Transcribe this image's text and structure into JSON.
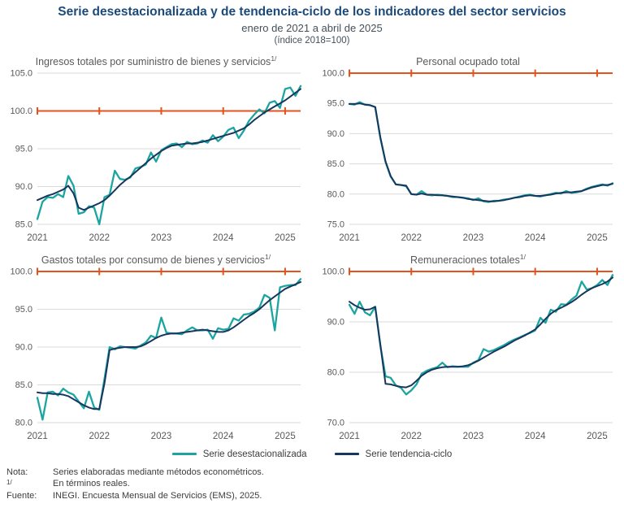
{
  "header": {
    "title": "Serie desestacionalizada y de tendencia-ciclo de los indicadores del sector servicios",
    "subtitle": "enero de 2021 a abril de 2025",
    "index_label": "(índice 2018=100)"
  },
  "legend": {
    "items": [
      {
        "label": "Serie desestacionalizada",
        "color": "#1ca5a0"
      },
      {
        "label": "Serie tendencia-ciclo",
        "color": "#17375e"
      }
    ]
  },
  "footnotes": [
    {
      "label": "Nota:",
      "text": "Series elaboradas mediante métodos econométricos."
    },
    {
      "label": "1/",
      "text": "En términos reales."
    },
    {
      "label": "Fuente:",
      "text": "INEGI. Encuesta Mensual de Servicios (EMS), 2025."
    }
  ],
  "colors": {
    "title": "#1b4a7a",
    "subtitle": "#44505a",
    "chart_title": "#595959",
    "axis_text": "#595959",
    "gridline": "#dadada",
    "ref_line": "#e5521c",
    "serie_desestacionalizada": "#1ca5a0",
    "serie_tendencia": "#17375e"
  },
  "chart_data": [
    {
      "type": "line",
      "id": "ingresos",
      "title": "Ingresos totales por suministro de bienes y servicios",
      "title_sup": "1/",
      "x_start": "enero 2021",
      "x_end": "abril 2025",
      "x_tick_labels": [
        "2021",
        "2022",
        "2023",
        "2024",
        "2025"
      ],
      "ylim": [
        85,
        105
      ],
      "yticks": [
        85,
        90,
        95,
        100,
        105
      ],
      "ref_line": 100,
      "series": [
        {
          "name": "Serie desestacionalizada",
          "values": [
            85.7,
            88.0,
            88.6,
            88.5,
            89.0,
            88.6,
            91.4,
            90.1,
            86.4,
            86.6,
            87.4,
            87.2,
            85.0,
            88.6,
            88.9,
            92.1,
            91.0,
            90.9,
            91.2,
            92.4,
            92.6,
            92.9,
            94.5,
            93.3,
            94.8,
            95.2,
            95.6,
            95.7,
            95.2,
            95.9,
            95.6,
            95.7,
            96.1,
            95.8,
            96.8,
            96.0,
            96.6,
            97.5,
            97.8,
            96.4,
            97.4,
            98.7,
            99.5,
            100.2,
            99.7,
            101.1,
            101.3,
            100.4,
            102.9,
            103.1,
            102.0,
            103.3
          ]
        },
        {
          "name": "Serie tendencia-ciclo",
          "values": [
            88.2,
            88.5,
            88.8,
            89.0,
            89.3,
            89.6,
            90.1,
            89.1,
            87.2,
            86.9,
            87.2,
            87.5,
            87.8,
            88.2,
            88.8,
            89.5,
            90.2,
            90.8,
            91.3,
            91.9,
            92.5,
            93.1,
            93.7,
            94.2,
            94.7,
            95.1,
            95.4,
            95.5,
            95.6,
            95.7,
            95.7,
            95.8,
            95.9,
            96.1,
            96.3,
            96.5,
            96.7,
            96.9,
            97.1,
            97.4,
            97.7,
            98.2,
            98.8,
            99.3,
            99.8,
            100.2,
            100.6,
            101.0,
            101.4,
            101.9,
            102.4,
            102.9
          ]
        }
      ]
    },
    {
      "type": "line",
      "id": "personal",
      "title": "Personal ocupado total",
      "title_sup": "",
      "x_start": "enero 2021",
      "x_end": "abril 2025",
      "x_tick_labels": [
        "2021",
        "2022",
        "2023",
        "2024",
        "2025"
      ],
      "ylim": [
        75,
        100
      ],
      "yticks": [
        75,
        80,
        85,
        90,
        95,
        100
      ],
      "ref_line": 100,
      "series": [
        {
          "name": "Serie desestacionalizada",
          "values": [
            94.9,
            94.8,
            95.2,
            94.8,
            94.7,
            94.4,
            89.3,
            85.3,
            82.9,
            81.6,
            81.5,
            81.3,
            80.0,
            79.9,
            80.5,
            79.9,
            79.8,
            79.9,
            79.8,
            79.7,
            79.5,
            79.5,
            79.4,
            79.3,
            79.0,
            79.3,
            78.8,
            78.7,
            78.9,
            78.9,
            79.1,
            79.2,
            79.4,
            79.6,
            79.8,
            79.9,
            79.7,
            79.6,
            79.8,
            80.0,
            80.2,
            80.1,
            80.5,
            80.2,
            80.3,
            80.5,
            80.9,
            81.2,
            81.4,
            81.6,
            81.4,
            81.8
          ]
        },
        {
          "name": "Serie tendencia-ciclo",
          "values": [
            94.9,
            94.9,
            95.0,
            94.8,
            94.7,
            94.4,
            89.4,
            85.4,
            83.0,
            81.6,
            81.5,
            81.4,
            80.0,
            79.9,
            80.1,
            79.9,
            79.9,
            79.8,
            79.8,
            79.7,
            79.6,
            79.5,
            79.4,
            79.2,
            79.1,
            79.0,
            78.9,
            78.8,
            78.8,
            78.9,
            79.0,
            79.2,
            79.4,
            79.5,
            79.7,
            79.8,
            79.7,
            79.7,
            79.8,
            79.9,
            80.1,
            80.2,
            80.3,
            80.3,
            80.4,
            80.5,
            80.8,
            81.1,
            81.3,
            81.5,
            81.5,
            81.7
          ]
        }
      ]
    },
    {
      "type": "line",
      "id": "gastos",
      "title": "Gastos totales por consumo de bienes y servicios",
      "title_sup": "1/",
      "x_start": "enero 2021",
      "x_end": "abril 2025",
      "x_tick_labels": [
        "2021",
        "2022",
        "2023",
        "2024",
        "2025"
      ],
      "ylim": [
        80,
        100
      ],
      "yticks": [
        80,
        85,
        90,
        95,
        100
      ],
      "ref_line": 100,
      "series": [
        {
          "name": "Serie desestacionalizada",
          "values": [
            83.3,
            80.4,
            84.0,
            84.1,
            83.6,
            84.5,
            84.0,
            83.7,
            82.8,
            81.9,
            84.1,
            82.0,
            81.7,
            85.8,
            90.0,
            89.7,
            90.1,
            90.0,
            89.9,
            89.8,
            90.2,
            90.6,
            91.5,
            91.2,
            93.9,
            91.9,
            91.8,
            91.8,
            91.7,
            92.2,
            92.6,
            92.2,
            92.2,
            92.3,
            91.1,
            92.5,
            92.3,
            92.4,
            93.8,
            93.5,
            94.3,
            94.4,
            94.7,
            95.2,
            96.9,
            96.5,
            92.2,
            97.9,
            98.1,
            98.2,
            98.2,
            99.0
          ]
        },
        {
          "name": "Serie tendencia-ciclo",
          "values": [
            84.0,
            83.9,
            83.9,
            83.8,
            83.8,
            83.7,
            83.5,
            83.1,
            82.7,
            82.3,
            82.0,
            81.8,
            81.8,
            85.2,
            89.6,
            89.8,
            89.9,
            90.0,
            90.0,
            90.0,
            90.1,
            90.4,
            90.8,
            91.2,
            91.5,
            91.7,
            91.8,
            91.8,
            91.9,
            92.0,
            92.1,
            92.2,
            92.3,
            92.2,
            92.1,
            92.0,
            92.0,
            92.2,
            92.6,
            93.1,
            93.6,
            94.1,
            94.5,
            95.0,
            95.6,
            96.2,
            96.7,
            97.2,
            97.7,
            98.0,
            98.3,
            98.6
          ]
        }
      ]
    },
    {
      "type": "line",
      "id": "remuneraciones",
      "title": "Remuneraciones totales",
      "title_sup": "1/",
      "x_start": "enero 2021",
      "x_end": "abril 2025",
      "x_tick_labels": [
        "2021",
        "2022",
        "2023",
        "2024",
        "2025"
      ],
      "ylim": [
        70,
        100
      ],
      "yticks": [
        70,
        80,
        90,
        100
      ],
      "ref_line": 100,
      "series": [
        {
          "name": "Serie desestacionalizada",
          "values": [
            93.4,
            91.6,
            94.0,
            91.9,
            91.3,
            93.0,
            85.3,
            79.2,
            78.9,
            77.4,
            76.9,
            75.6,
            76.4,
            77.6,
            79.7,
            80.3,
            80.7,
            81.0,
            81.9,
            81.0,
            81.2,
            81.1,
            81.1,
            81.1,
            81.9,
            82.4,
            84.6,
            84.1,
            84.4,
            84.9,
            85.4,
            86.0,
            86.5,
            86.9,
            87.4,
            87.8,
            88.3,
            90.8,
            89.8,
            92.4,
            92.0,
            93.5,
            93.4,
            94.4,
            95.2,
            98.0,
            96.4,
            96.7,
            97.3,
            98.3,
            97.3,
            99.3
          ]
        },
        {
          "name": "Serie tendencia-ciclo",
          "values": [
            94.0,
            93.3,
            92.8,
            92.4,
            92.5,
            93.0,
            85.5,
            77.7,
            77.6,
            77.3,
            77.1,
            77.0,
            77.4,
            78.3,
            79.3,
            80.0,
            80.5,
            80.8,
            81.0,
            81.1,
            81.1,
            81.1,
            81.2,
            81.4,
            81.8,
            82.3,
            82.9,
            83.5,
            84.1,
            84.6,
            85.1,
            85.7,
            86.3,
            86.8,
            87.3,
            87.9,
            88.5,
            89.5,
            90.6,
            91.6,
            92.3,
            92.8,
            93.3,
            93.9,
            94.6,
            95.4,
            96.1,
            96.7,
            97.1,
            97.5,
            98.0,
            98.8
          ]
        }
      ]
    }
  ]
}
